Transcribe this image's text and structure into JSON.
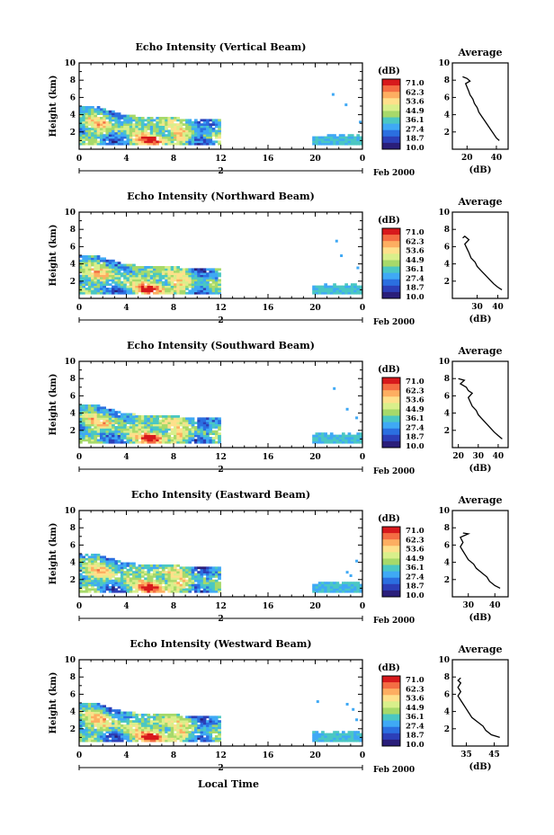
{
  "chart_data": {
    "type": "heatmap",
    "x_label": "Local Time",
    "date_label": "Feb 2000",
    "day_marker": "2",
    "x_ticks": [
      "0",
      "4",
      "8",
      "12",
      "16",
      "20",
      "0"
    ],
    "x_range": [
      0,
      24
    ],
    "y_label": "Height (km)",
    "y_ticks": [
      "2",
      "4",
      "6",
      "8",
      "10"
    ],
    "y_range": [
      0,
      10
    ],
    "colorbar": {
      "unit": "(dB)",
      "labels": [
        "71.0",
        "62.3",
        "53.6",
        "44.9",
        "36.1",
        "27.4",
        "18.7",
        "10.0"
      ],
      "colors": [
        "#d7191c",
        "#f46d43",
        "#fdae61",
        "#fee08b",
        "#d9ef8b",
        "#a6d96a",
        "#4ac7c3",
        "#3fa9f5",
        "#2b6fe0",
        "#2c3fb8",
        "#2a1e7a"
      ]
    },
    "average_title": "Average",
    "average_xlabel": "(dB)",
    "panels": [
      {
        "title": "Echo Intensity (Vertical Beam)",
        "avg_xticks": [
          "20",
          "40"
        ],
        "avg_xrange": [
          10,
          48
        ],
        "profile": [
          [
            42,
            1.0
          ],
          [
            40,
            1.3
          ],
          [
            38,
            1.8
          ],
          [
            36,
            2.3
          ],
          [
            34,
            2.8
          ],
          [
            32,
            3.3
          ],
          [
            30,
            3.8
          ],
          [
            28,
            4.3
          ],
          [
            27,
            4.8
          ],
          [
            25,
            5.3
          ],
          [
            24,
            5.8
          ],
          [
            22,
            6.3
          ],
          [
            21,
            6.8
          ],
          [
            20,
            7.2
          ],
          [
            19,
            7.6
          ],
          [
            22,
            7.9
          ],
          [
            20,
            8.2
          ],
          [
            17,
            8.4
          ]
        ],
        "upper_echo": [
          [
            21.4,
            6.5
          ],
          [
            22.5,
            5.3
          ],
          [
            23.7,
            3.3
          ]
        ]
      },
      {
        "title": "Echo Intensity (Northward Beam)",
        "avg_xticks": [
          "30",
          "40"
        ],
        "avg_xrange": [
          18,
          45
        ],
        "profile": [
          [
            42,
            1.0
          ],
          [
            40,
            1.3
          ],
          [
            38,
            1.7
          ],
          [
            36,
            2.2
          ],
          [
            34,
            2.7
          ],
          [
            32,
            3.2
          ],
          [
            30,
            3.7
          ],
          [
            29,
            4.2
          ],
          [
            27,
            4.7
          ],
          [
            26,
            5.3
          ],
          [
            25,
            5.8
          ],
          [
            24,
            6.3
          ],
          [
            26,
            6.8
          ],
          [
            24,
            7.2
          ],
          [
            23,
            7.0
          ]
        ],
        "upper_echo": [
          [
            21.7,
            6.8
          ],
          [
            22.1,
            5.1
          ],
          [
            23.5,
            3.7
          ]
        ]
      },
      {
        "title": "Echo Intensity (Southward Beam)",
        "avg_xticks": [
          "20",
          "30",
          "40"
        ],
        "avg_xrange": [
          17,
          45
        ],
        "profile": [
          [
            42,
            1.0
          ],
          [
            40,
            1.4
          ],
          [
            38,
            1.8
          ],
          [
            36,
            2.3
          ],
          [
            34,
            2.8
          ],
          [
            32,
            3.3
          ],
          [
            30,
            3.8
          ],
          [
            29,
            4.3
          ],
          [
            27,
            4.8
          ],
          [
            26,
            5.3
          ],
          [
            25,
            5.8
          ],
          [
            27,
            6.3
          ],
          [
            25,
            6.6
          ],
          [
            24,
            7.0
          ],
          [
            21,
            7.4
          ],
          [
            23,
            7.8
          ],
          [
            20,
            8.0
          ]
        ],
        "upper_echo": [
          [
            21.5,
            7.0
          ],
          [
            22.6,
            4.6
          ],
          [
            23.4,
            3.6
          ]
        ]
      },
      {
        "title": "Echo Intensity (Eastward Beam)",
        "avg_xticks": [
          "30",
          "40"
        ],
        "avg_xrange": [
          24,
          45
        ],
        "profile": [
          [
            42,
            1.0
          ],
          [
            40,
            1.3
          ],
          [
            38,
            1.8
          ],
          [
            37,
            2.3
          ],
          [
            35,
            2.8
          ],
          [
            33,
            3.3
          ],
          [
            32,
            3.8
          ],
          [
            30,
            4.3
          ],
          [
            29,
            4.8
          ],
          [
            28,
            5.3
          ],
          [
            27,
            5.8
          ],
          [
            28,
            6.3
          ],
          [
            27,
            6.9
          ],
          [
            30,
            7.3
          ],
          [
            28,
            7.4
          ]
        ],
        "upper_echo": [
          [
            22.6,
            3.0
          ],
          [
            23.4,
            4.3
          ],
          [
            22.9,
            2.6
          ]
        ]
      },
      {
        "title": "Echo Intensity (Westward Beam)",
        "avg_xticks": [
          "35",
          "45"
        ],
        "avg_xrange": [
          30,
          50
        ],
        "profile": [
          [
            47,
            1.0
          ],
          [
            44,
            1.3
          ],
          [
            42,
            1.8
          ],
          [
            41,
            2.3
          ],
          [
            39,
            2.8
          ],
          [
            37,
            3.3
          ],
          [
            36,
            3.8
          ],
          [
            35,
            4.3
          ],
          [
            34,
            4.8
          ],
          [
            33,
            5.3
          ],
          [
            32,
            5.8
          ],
          [
            33,
            6.3
          ],
          [
            32,
            6.8
          ],
          [
            33,
            7.3
          ],
          [
            32,
            7.6
          ],
          [
            33,
            7.9
          ]
        ],
        "upper_echo": [
          [
            20.1,
            5.3
          ],
          [
            22.6,
            5.0
          ],
          [
            23.1,
            4.4
          ],
          [
            23.4,
            3.2
          ]
        ]
      }
    ]
  }
}
